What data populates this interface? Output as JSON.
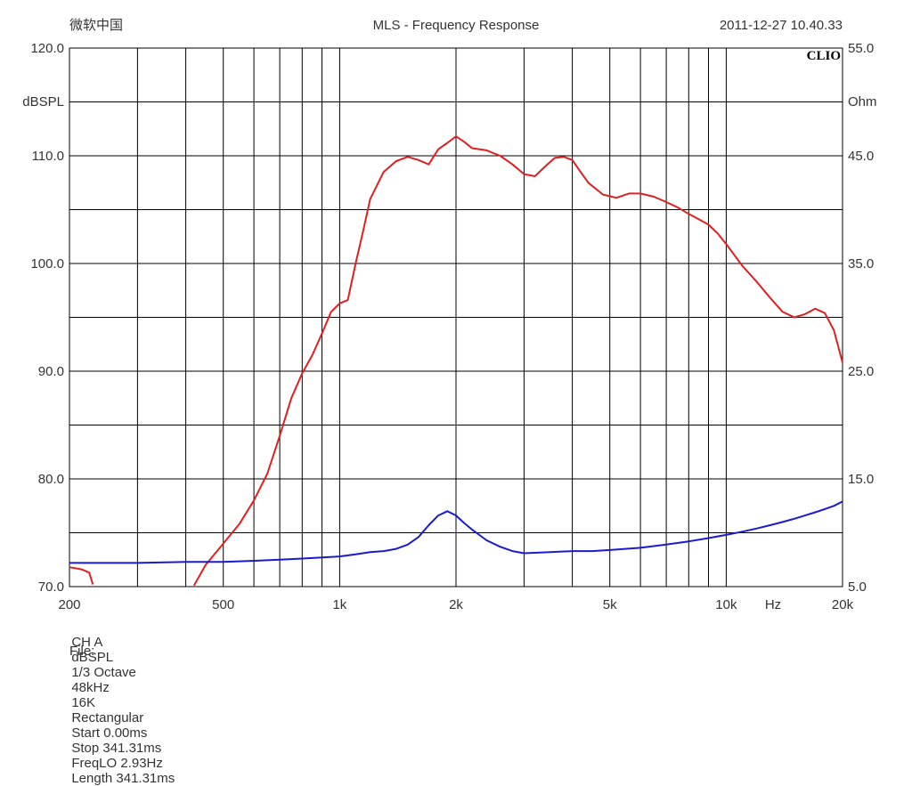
{
  "header": {
    "left": "微软中国",
    "title": "MLS - Frequency Response",
    "timestamp": "2011-12-27 10.40.33"
  },
  "brand": "CLIO",
  "colors": {
    "spl": "#e02020",
    "impedance": "#1a1ad0",
    "grid": "#000000"
  },
  "chart_data": {
    "type": "line",
    "title": "MLS - Frequency Response",
    "x_scale": "log",
    "xlim": [
      200,
      20000
    ],
    "ylim_left": [
      70,
      120
    ],
    "ylim_right": [
      5,
      55
    ],
    "ylabel_left": "dBSPL",
    "ylabel_right": "Ohm",
    "xunit": "Hz",
    "grid": true,
    "x_ticks": [
      {
        "v": 200,
        "label": "200"
      },
      {
        "v": 500,
        "label": "500"
      },
      {
        "v": 1000,
        "label": "1k"
      },
      {
        "v": 2000,
        "label": "2k"
      },
      {
        "v": 5000,
        "label": "5k"
      },
      {
        "v": 10000,
        "label": "10k"
      },
      {
        "v": 20000,
        "label": "20k"
      }
    ],
    "x_grid": [
      300,
      400,
      500,
      600,
      700,
      800,
      900,
      1000,
      2000,
      3000,
      4000,
      5000,
      6000,
      7000,
      8000,
      9000,
      10000
    ],
    "y_ticks_left": [
      {
        "v": 70,
        "label": "70.0"
      },
      {
        "v": 80,
        "label": "80.0"
      },
      {
        "v": 90,
        "label": "90.0"
      },
      {
        "v": 100,
        "label": "100.0"
      },
      {
        "v": 110,
        "label": "110.0"
      },
      {
        "v": 120,
        "label": "120.0"
      }
    ],
    "y_ticks_right": [
      {
        "v": 5,
        "label": "5.0"
      },
      {
        "v": 15,
        "label": "15.0"
      },
      {
        "v": 25,
        "label": "25.0"
      },
      {
        "v": 35,
        "label": "35.0"
      },
      {
        "v": 45,
        "label": "45.0"
      },
      {
        "v": 55,
        "label": "55.0"
      }
    ],
    "y_grid_left": [
      75,
      80,
      85,
      90,
      95,
      100,
      105,
      110,
      115
    ],
    "series": [
      {
        "key": "spl",
        "axis": "left",
        "points": [
          [
            200,
            71.8
          ],
          [
            215,
            71.6
          ],
          [
            225,
            71.3
          ],
          [
            230,
            70.2
          ],
          [
            233,
            69.8
          ],
          [
            240,
            70.1
          ],
          [
            244,
            69.8
          ],
          [
            420,
            70.1
          ],
          [
            450,
            72.0
          ],
          [
            500,
            74.0
          ],
          [
            550,
            75.8
          ],
          [
            600,
            78.0
          ],
          [
            650,
            80.5
          ],
          [
            700,
            84.0
          ],
          [
            750,
            87.5
          ],
          [
            800,
            89.8
          ],
          [
            850,
            91.5
          ],
          [
            900,
            93.5
          ],
          [
            950,
            95.5
          ],
          [
            1000,
            96.3
          ],
          [
            1050,
            96.6
          ],
          [
            1100,
            100.0
          ],
          [
            1150,
            103.0
          ],
          [
            1200,
            106.0
          ],
          [
            1300,
            108.5
          ],
          [
            1400,
            109.5
          ],
          [
            1500,
            109.9
          ],
          [
            1600,
            109.6
          ],
          [
            1700,
            109.2
          ],
          [
            1800,
            110.6
          ],
          [
            1900,
            111.2
          ],
          [
            2000,
            111.8
          ],
          [
            2100,
            111.3
          ],
          [
            2200,
            110.7
          ],
          [
            2400,
            110.5
          ],
          [
            2600,
            110.0
          ],
          [
            2800,
            109.2
          ],
          [
            3000,
            108.3
          ],
          [
            3200,
            108.1
          ],
          [
            3400,
            109.0
          ],
          [
            3600,
            109.8
          ],
          [
            3800,
            109.9
          ],
          [
            4000,
            109.6
          ],
          [
            4200,
            108.5
          ],
          [
            4400,
            107.5
          ],
          [
            4800,
            106.4
          ],
          [
            5200,
            106.1
          ],
          [
            5600,
            106.5
          ],
          [
            6000,
            106.5
          ],
          [
            6500,
            106.2
          ],
          [
            7000,
            105.7
          ],
          [
            7500,
            105.2
          ],
          [
            8000,
            104.6
          ],
          [
            8500,
            104.1
          ],
          [
            9000,
            103.6
          ],
          [
            9500,
            102.8
          ],
          [
            10000,
            101.8
          ],
          [
            11000,
            99.8
          ],
          [
            12000,
            98.3
          ],
          [
            13000,
            96.8
          ],
          [
            14000,
            95.5
          ],
          [
            15000,
            95.0
          ],
          [
            16000,
            95.3
          ],
          [
            17000,
            95.8
          ],
          [
            18000,
            95.4
          ],
          [
            19000,
            93.8
          ],
          [
            20000,
            90.8
          ]
        ]
      },
      {
        "key": "impedance",
        "axis": "right",
        "points": [
          [
            200,
            7.2
          ],
          [
            300,
            7.2
          ],
          [
            400,
            7.3
          ],
          [
            500,
            7.3
          ],
          [
            600,
            7.4
          ],
          [
            700,
            7.5
          ],
          [
            800,
            7.6
          ],
          [
            900,
            7.7
          ],
          [
            1000,
            7.8
          ],
          [
            1100,
            8.0
          ],
          [
            1200,
            8.2
          ],
          [
            1300,
            8.3
          ],
          [
            1400,
            8.5
          ],
          [
            1500,
            8.9
          ],
          [
            1600,
            9.6
          ],
          [
            1700,
            10.7
          ],
          [
            1800,
            11.6
          ],
          [
            1900,
            12.0
          ],
          [
            2000,
            11.6
          ],
          [
            2100,
            10.9
          ],
          [
            2200,
            10.3
          ],
          [
            2400,
            9.3
          ],
          [
            2600,
            8.7
          ],
          [
            2800,
            8.3
          ],
          [
            3000,
            8.1
          ],
          [
            3500,
            8.2
          ],
          [
            4000,
            8.3
          ],
          [
            4500,
            8.3
          ],
          [
            5000,
            8.4
          ],
          [
            6000,
            8.6
          ],
          [
            7000,
            8.9
          ],
          [
            8000,
            9.2
          ],
          [
            9000,
            9.5
          ],
          [
            10000,
            9.8
          ],
          [
            11000,
            10.1
          ],
          [
            12000,
            10.4
          ],
          [
            13000,
            10.7
          ],
          [
            14000,
            11.0
          ],
          [
            15000,
            11.3
          ],
          [
            16000,
            11.6
          ],
          [
            17000,
            11.9
          ],
          [
            18000,
            12.2
          ],
          [
            19000,
            12.5
          ],
          [
            20000,
            12.9
          ]
        ]
      }
    ]
  },
  "status_bar": {
    "items": [
      "CH A",
      "dBSPL",
      "1/3 Octave",
      "48kHz",
      "16K",
      "Rectangular",
      "Start 0.00ms",
      "Stop 341.31ms",
      "FreqLO 2.93Hz",
      "Length 341.31ms"
    ],
    "file_label": "File:"
  }
}
